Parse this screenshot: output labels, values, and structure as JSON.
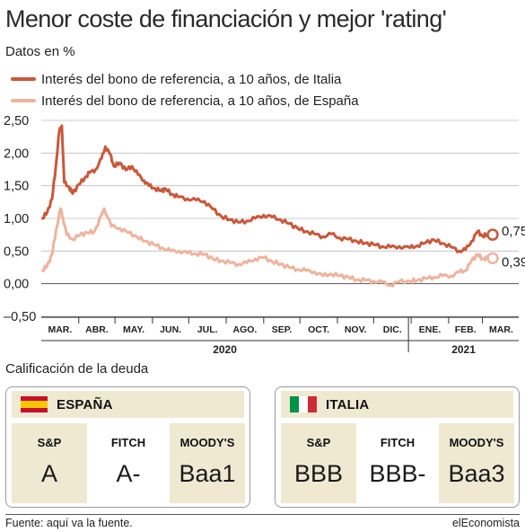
{
  "header": {
    "title": "Menor coste de financiación y mejor 'rating'",
    "subtitle": "Datos en %"
  },
  "chart_data": {
    "type": "line",
    "ylim": [
      -0.5,
      2.5
    ],
    "ytick_labels": [
      "2,50",
      "2,00",
      "1,50",
      "1,00",
      "0,50",
      "0,00",
      "–0,50"
    ],
    "yticks": [
      2.5,
      2.0,
      1.5,
      1.0,
      0.5,
      0.0,
      -0.5
    ],
    "month_labels": [
      "MAR.",
      "ABR.",
      "MAY.",
      "JUN.",
      "JUL.",
      "AGO.",
      "SEP.",
      "OCT.",
      "NOV.",
      "DIC.",
      "ENE.",
      "FEB.",
      "MAR."
    ],
    "year_labels": [
      "2020",
      "2021"
    ],
    "x_start": "2020-03-01",
    "x_end": "2021-03-31",
    "grid": "horizontal",
    "series": [
      {
        "name": "Interés del bono de referencia, a 10 años, de Italia",
        "color": "#c9583a",
        "end_label": "0,75",
        "points": [
          [
            "2020-03-02",
            1.0
          ],
          [
            "2020-03-06",
            1.1
          ],
          [
            "2020-03-10",
            1.3
          ],
          [
            "2020-03-13",
            1.8
          ],
          [
            "2020-03-16",
            2.35
          ],
          [
            "2020-03-18",
            2.42
          ],
          [
            "2020-03-20",
            1.55
          ],
          [
            "2020-03-24",
            1.48
          ],
          [
            "2020-03-27",
            1.38
          ],
          [
            "2020-04-01",
            1.52
          ],
          [
            "2020-04-06",
            1.62
          ],
          [
            "2020-04-10",
            1.7
          ],
          [
            "2020-04-15",
            1.75
          ],
          [
            "2020-04-20",
            1.92
          ],
          [
            "2020-04-23",
            2.1
          ],
          [
            "2020-04-27",
            1.98
          ],
          [
            "2020-04-30",
            1.8
          ],
          [
            "2020-05-05",
            1.85
          ],
          [
            "2020-05-10",
            1.74
          ],
          [
            "2020-05-15",
            1.8
          ],
          [
            "2020-05-20",
            1.67
          ],
          [
            "2020-05-25",
            1.58
          ],
          [
            "2020-05-29",
            1.5
          ],
          [
            "2020-06-03",
            1.46
          ],
          [
            "2020-06-08",
            1.42
          ],
          [
            "2020-06-12",
            1.45
          ],
          [
            "2020-06-17",
            1.37
          ],
          [
            "2020-06-22",
            1.33
          ],
          [
            "2020-06-30",
            1.3
          ],
          [
            "2020-07-07",
            1.28
          ],
          [
            "2020-07-14",
            1.26
          ],
          [
            "2020-07-21",
            1.14
          ],
          [
            "2020-07-28",
            1.03
          ],
          [
            "2020-08-04",
            0.98
          ],
          [
            "2020-08-11",
            0.94
          ],
          [
            "2020-08-18",
            0.96
          ],
          [
            "2020-08-25",
            1.0
          ],
          [
            "2020-09-01",
            1.05
          ],
          [
            "2020-09-08",
            1.02
          ],
          [
            "2020-09-15",
            0.98
          ],
          [
            "2020-09-22",
            0.92
          ],
          [
            "2020-09-29",
            0.85
          ],
          [
            "2020-10-06",
            0.8
          ],
          [
            "2020-10-13",
            0.76
          ],
          [
            "2020-10-20",
            0.72
          ],
          [
            "2020-10-27",
            0.76
          ],
          [
            "2020-11-03",
            0.7
          ],
          [
            "2020-11-10",
            0.68
          ],
          [
            "2020-11-17",
            0.65
          ],
          [
            "2020-11-24",
            0.62
          ],
          [
            "2020-12-01",
            0.6
          ],
          [
            "2020-12-08",
            0.57
          ],
          [
            "2020-12-15",
            0.56
          ],
          [
            "2020-12-22",
            0.57
          ],
          [
            "2020-12-31",
            0.55
          ],
          [
            "2021-01-06",
            0.58
          ],
          [
            "2021-01-13",
            0.63
          ],
          [
            "2021-01-20",
            0.67
          ],
          [
            "2021-01-27",
            0.62
          ],
          [
            "2021-02-03",
            0.56
          ],
          [
            "2021-02-10",
            0.5
          ],
          [
            "2021-02-15",
            0.52
          ],
          [
            "2021-02-20",
            0.65
          ],
          [
            "2021-02-25",
            0.8
          ],
          [
            "2021-03-01",
            0.73
          ],
          [
            "2021-03-05",
            0.75
          ]
        ]
      },
      {
        "name": "Interés del bono de referencia, a 10 años, de España",
        "color": "#edb49e",
        "end_label": "0,39",
        "points": [
          [
            "2020-03-02",
            0.2
          ],
          [
            "2020-03-06",
            0.28
          ],
          [
            "2020-03-10",
            0.45
          ],
          [
            "2020-03-13",
            0.8
          ],
          [
            "2020-03-17",
            1.15
          ],
          [
            "2020-03-19",
            1.0
          ],
          [
            "2020-03-22",
            0.75
          ],
          [
            "2020-03-27",
            0.68
          ],
          [
            "2020-04-02",
            0.75
          ],
          [
            "2020-04-08",
            0.78
          ],
          [
            "2020-04-14",
            0.8
          ],
          [
            "2020-04-20",
            1.05
          ],
          [
            "2020-04-22",
            1.15
          ],
          [
            "2020-04-28",
            0.88
          ],
          [
            "2020-05-05",
            0.85
          ],
          [
            "2020-05-12",
            0.78
          ],
          [
            "2020-05-19",
            0.72
          ],
          [
            "2020-05-26",
            0.65
          ],
          [
            "2020-06-02",
            0.6
          ],
          [
            "2020-06-09",
            0.55
          ],
          [
            "2020-06-16",
            0.5
          ],
          [
            "2020-06-23",
            0.5
          ],
          [
            "2020-06-30",
            0.47
          ],
          [
            "2020-07-07",
            0.46
          ],
          [
            "2020-07-14",
            0.45
          ],
          [
            "2020-07-21",
            0.38
          ],
          [
            "2020-07-28",
            0.35
          ],
          [
            "2020-08-04",
            0.32
          ],
          [
            "2020-08-11",
            0.3
          ],
          [
            "2020-08-18",
            0.32
          ],
          [
            "2020-08-25",
            0.38
          ],
          [
            "2020-09-01",
            0.4
          ],
          [
            "2020-09-08",
            0.34
          ],
          [
            "2020-09-15",
            0.3
          ],
          [
            "2020-09-22",
            0.25
          ],
          [
            "2020-09-29",
            0.22
          ],
          [
            "2020-10-06",
            0.2
          ],
          [
            "2020-10-13",
            0.18
          ],
          [
            "2020-10-20",
            0.12
          ],
          [
            "2020-10-27",
            0.15
          ],
          [
            "2020-11-03",
            0.12
          ],
          [
            "2020-11-10",
            0.1
          ],
          [
            "2020-11-17",
            0.06
          ],
          [
            "2020-11-24",
            0.05
          ],
          [
            "2020-12-01",
            0.04
          ],
          [
            "2020-12-08",
            0.02
          ],
          [
            "2020-12-15",
            -0.02
          ],
          [
            "2020-12-22",
            0.03
          ],
          [
            "2020-12-31",
            0.04
          ],
          [
            "2021-01-06",
            0.05
          ],
          [
            "2021-01-13",
            0.08
          ],
          [
            "2021-01-20",
            0.1
          ],
          [
            "2021-01-27",
            0.12
          ],
          [
            "2021-02-03",
            0.12
          ],
          [
            "2021-02-10",
            0.18
          ],
          [
            "2021-02-15",
            0.2
          ],
          [
            "2021-02-20",
            0.35
          ],
          [
            "2021-02-25",
            0.45
          ],
          [
            "2021-03-01",
            0.38
          ],
          [
            "2021-03-05",
            0.39
          ]
        ]
      }
    ]
  },
  "ratings": {
    "section_title": "Calificación de la deuda",
    "countries": [
      {
        "name": "ESPAÑA",
        "flag_icon": "spain-flag-icon",
        "agencies": [
          {
            "agency": "S&P",
            "rating": "A"
          },
          {
            "agency": "FITCH",
            "rating": "A-"
          },
          {
            "agency": "MOODY'S",
            "rating": "Baa1"
          }
        ]
      },
      {
        "name": "ITALIA",
        "flag_icon": "italy-flag-icon",
        "agencies": [
          {
            "agency": "S&P",
            "rating": "BBB"
          },
          {
            "agency": "FITCH",
            "rating": "BBB-"
          },
          {
            "agency": "MOODY'S",
            "rating": "Baa3"
          }
        ]
      }
    ]
  },
  "footer": {
    "source": "Fuente: aquí va la fuente.",
    "brand": "elEconomista"
  }
}
